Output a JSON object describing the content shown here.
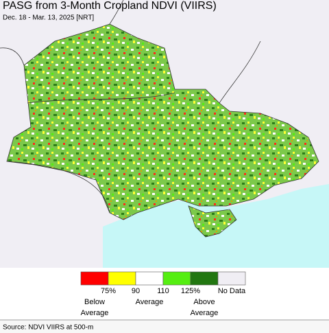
{
  "header": {
    "title": "PASG from 3-Month Cropland NDVI (VIIRS)",
    "subtitle": "Dec. 18 - Mar. 13, 2025 [NRT]"
  },
  "legend": {
    "colors": [
      "#ff0000",
      "#ffff00",
      "#ffffff",
      "#55ee11",
      "#227711",
      "#f0eef4"
    ],
    "tick_labels": [
      "75%",
      "90",
      "110",
      "125%",
      "No Data"
    ],
    "groups": [
      {
        "lines": [
          "Below",
          "Average"
        ]
      },
      {
        "lines": [
          "Average"
        ]
      },
      {
        "lines": [
          "Above",
          "Average"
        ]
      }
    ]
  },
  "source": "Source: NDVI VIIRS at 500-m"
}
